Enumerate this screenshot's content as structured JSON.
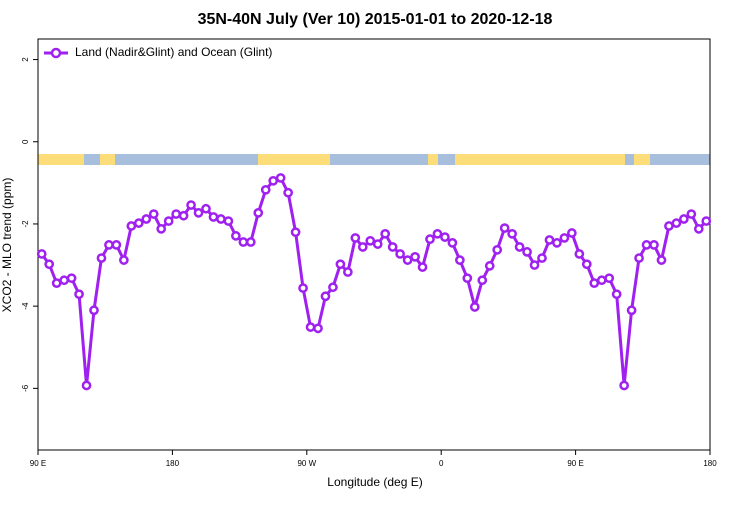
{
  "chart_data": {
    "type": "line",
    "title": "35N-40N July (Ver 10)   2015-01-01 to 2020-12-18",
    "xlabel": "Longitude (deg E)",
    "ylabel": "XCO2 - MLO trend (ppm)",
    "xlim": [
      90,
      540
    ],
    "ylim": [
      -7.5,
      2.5
    ],
    "xticks": [
      {
        "value": 90,
        "label": "90 E"
      },
      180,
      {
        "value": 270,
        "label": "90 W"
      },
      {
        "value": 360,
        "label": "0"
      },
      {
        "value": 450,
        "label": "90 E"
      },
      {
        "value": 540,
        "label": "180"
      }
    ],
    "yticks": [
      -6,
      -4,
      -2,
      0,
      2
    ],
    "legend": "top-left",
    "x": [
      92.5,
      97.5,
      102.5,
      107.5,
      112.5,
      117.5,
      122.5,
      127.5,
      132.5,
      137.5,
      142.5,
      147.5,
      152.5,
      157.5,
      162.5,
      167.5,
      172.5,
      177.5,
      182.5,
      187.5,
      192.5,
      197.5,
      202.5,
      207.5,
      212.5,
      217.5,
      222.5,
      227.5,
      232.5,
      237.5,
      242.5,
      247.5,
      252.5,
      257.5,
      262.5,
      267.5,
      272.5,
      277.5,
      282.5,
      287.5,
      292.5,
      297.5,
      302.5,
      307.5,
      312.5,
      317.5,
      322.5,
      327.5,
      332.5,
      337.5,
      342.5,
      347.5,
      352.5,
      357.5,
      362.5,
      367.5,
      372.5,
      377.5,
      382.5,
      387.5,
      392.5,
      397.5,
      402.5,
      407.5,
      412.5,
      417.5,
      422.5,
      427.5,
      432.5,
      437.5,
      442.5,
      447.5,
      452.5,
      457.5,
      462.5,
      467.5,
      472.5,
      477.5,
      482.5,
      487.5,
      492.5,
      497.5,
      502.5,
      507.5,
      512.5,
      517.5,
      522.5,
      527.5,
      532.5,
      537.5
    ],
    "series": [
      {
        "name": "Land (Nadir&Glint) and Ocean (Glint)",
        "color": "#a020f0",
        "values": [
          -2.73,
          -2.98,
          -3.44,
          -3.37,
          -3.32,
          -3.71,
          -5.93,
          -4.1,
          -2.83,
          -2.51,
          -2.51,
          -2.88,
          -2.05,
          -1.98,
          -1.88,
          -1.76,
          -2.12,
          -1.93,
          -1.76,
          -1.8,
          -1.54,
          -1.73,
          -1.63,
          -1.83,
          -1.88,
          -1.93,
          -2.29,
          -2.44,
          -2.44,
          -1.73,
          -1.17,
          -0.95,
          -0.88,
          -1.24,
          -2.2,
          -3.56,
          -4.51,
          -4.54,
          -3.76,
          -3.54,
          -2.98,
          -3.17,
          -2.34,
          -2.56,
          -2.41,
          -2.49,
          -2.24,
          -2.56,
          -2.73,
          -2.88,
          -2.8,
          -3.05,
          -2.37,
          -2.24,
          -2.32,
          -2.46,
          -2.88,
          -3.32,
          -4.02,
          -3.37,
          -3.02,
          -2.63,
          -2.1,
          -2.24,
          -2.56,
          -2.68,
          -3.0,
          -2.83,
          -2.39,
          -2.46,
          -2.34,
          -2.22,
          -2.73,
          -2.98,
          -3.44,
          -3.37,
          -3.32,
          -3.71,
          -5.93,
          -4.1,
          -2.83,
          -2.51,
          -2.51,
          -2.88,
          -2.05,
          -1.98,
          -1.88,
          -1.76,
          -2.12,
          -1.93
        ]
      }
    ]
  }
}
